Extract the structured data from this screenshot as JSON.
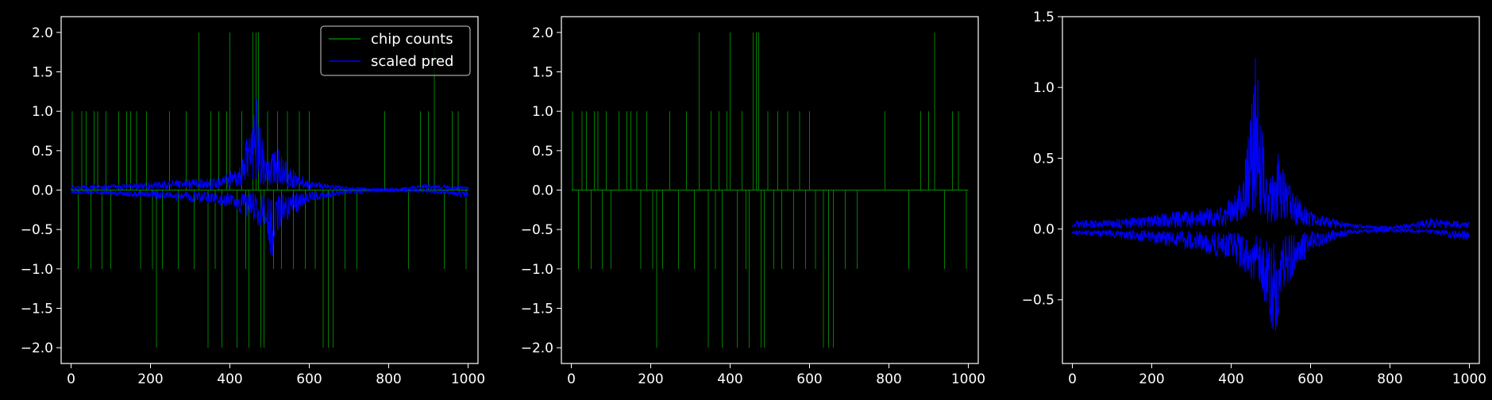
{
  "figure": {
    "background": "#000000",
    "foreground": "#ffffff"
  },
  "chart_data": [
    {
      "type": "line",
      "title": "",
      "xlabel": "",
      "ylabel": "",
      "xlim": [
        -25,
        1025
      ],
      "ylim": [
        -2.2,
        2.2
      ],
      "xticks": [
        0,
        200,
        400,
        600,
        800,
        1000
      ],
      "yticks": [
        -2.0,
        -1.5,
        -1.0,
        -0.5,
        0.0,
        0.5,
        1.0,
        1.5,
        2.0
      ],
      "xtick_labels": [
        "0",
        "200",
        "400",
        "600",
        "800",
        "1000"
      ],
      "ytick_labels": [
        "−2.0",
        "−1.5",
        "−1.0",
        "−0.5",
        "0.0",
        "0.5",
        "1.0",
        "1.5",
        "2.0"
      ],
      "grid": false,
      "legend": {
        "location": "top-right",
        "entries": [
          "chip counts",
          "scaled pred"
        ]
      },
      "series": [
        {
          "name": "chip counts",
          "color": "#008000",
          "nonzero_points": [
            [
              3,
              1
            ],
            [
              18,
              -1
            ],
            [
              27,
              1
            ],
            [
              38,
              1
            ],
            [
              50,
              -1
            ],
            [
              58,
              1
            ],
            [
              67,
              1
            ],
            [
              78,
              -1
            ],
            [
              88,
              1
            ],
            [
              100,
              -1
            ],
            [
              120,
              1
            ],
            [
              140,
              1
            ],
            [
              150,
              1
            ],
            [
              165,
              1
            ],
            [
              175,
              -1
            ],
            [
              190,
              1
            ],
            [
              205,
              -1
            ],
            [
              215,
              -2
            ],
            [
              230,
              -1
            ],
            [
              248,
              1
            ],
            [
              270,
              -1
            ],
            [
              290,
              1
            ],
            [
              310,
              -1
            ],
            [
              322,
              2
            ],
            [
              345,
              -2
            ],
            [
              352,
              1
            ],
            [
              363,
              -1
            ],
            [
              372,
              1
            ],
            [
              380,
              -2
            ],
            [
              392,
              1
            ],
            [
              400,
              2
            ],
            [
              418,
              -2
            ],
            [
              430,
              1
            ],
            [
              440,
              -1
            ],
            [
              448,
              -2
            ],
            [
              458,
              2
            ],
            [
              466,
              2
            ],
            [
              472,
              2
            ],
            [
              478,
              -2
            ],
            [
              486,
              -2
            ],
            [
              495,
              1
            ],
            [
              510,
              -1
            ],
            [
              520,
              1
            ],
            [
              530,
              -1
            ],
            [
              545,
              1
            ],
            [
              560,
              -1
            ],
            [
              575,
              1
            ],
            [
              590,
              -1
            ],
            [
              600,
              1
            ],
            [
              615,
              -1
            ],
            [
              635,
              -2
            ],
            [
              648,
              -2
            ],
            [
              660,
              -2
            ],
            [
              690,
              -1
            ],
            [
              720,
              -1
            ],
            [
              790,
              1
            ],
            [
              850,
              -1
            ],
            [
              880,
              1
            ],
            [
              900,
              1
            ],
            [
              915,
              2
            ],
            [
              940,
              -1
            ],
            [
              960,
              1
            ],
            [
              975,
              1
            ],
            [
              995,
              -1
            ]
          ]
        },
        {
          "name": "scaled pred",
          "color": "#0000ff",
          "upper_envelope": [
            [
              0,
              0.06
            ],
            [
              100,
              0.07
            ],
            [
              200,
              0.1
            ],
            [
              300,
              0.14
            ],
            [
              380,
              0.16
            ],
            [
              430,
              0.35
            ],
            [
              455,
              1.0
            ],
            [
              465,
              1.38
            ],
            [
              475,
              0.9
            ],
            [
              490,
              0.35
            ],
            [
              520,
              0.55
            ],
            [
              550,
              0.3
            ],
            [
              600,
              0.12
            ],
            [
              700,
              0.04
            ],
            [
              800,
              0.01
            ],
            [
              900,
              0.08
            ],
            [
              1000,
              0.05
            ]
          ],
          "lower_envelope": [
            [
              0,
              -0.04
            ],
            [
              100,
              -0.06
            ],
            [
              200,
              -0.1
            ],
            [
              300,
              -0.15
            ],
            [
              400,
              -0.22
            ],
            [
              450,
              -0.35
            ],
            [
              490,
              -0.55
            ],
            [
              505,
              -0.88
            ],
            [
              530,
              -0.45
            ],
            [
              600,
              -0.15
            ],
            [
              700,
              -0.04
            ],
            [
              800,
              -0.01
            ],
            [
              900,
              -0.03
            ],
            [
              1000,
              -0.1
            ]
          ]
        }
      ]
    },
    {
      "type": "line",
      "title": "",
      "xlabel": "",
      "ylabel": "",
      "xlim": [
        -25,
        1025
      ],
      "ylim": [
        -2.2,
        2.2
      ],
      "xticks": [
        0,
        200,
        400,
        600,
        800,
        1000
      ],
      "yticks": [
        -2.0,
        -1.5,
        -1.0,
        -0.5,
        0.0,
        0.5,
        1.0,
        1.5,
        2.0
      ],
      "xtick_labels": [
        "0",
        "200",
        "400",
        "600",
        "800",
        "1000"
      ],
      "ytick_labels": [
        "−2.0",
        "−1.5",
        "−1.0",
        "−0.5",
        "0.0",
        "0.5",
        "1.0",
        "1.5",
        "2.0"
      ],
      "grid": false,
      "series": [
        {
          "color": "#008000",
          "nonzero_points": [
            [
              3,
              1
            ],
            [
              18,
              -1
            ],
            [
              27,
              1
            ],
            [
              38,
              1
            ],
            [
              50,
              -1
            ],
            [
              58,
              1
            ],
            [
              67,
              1
            ],
            [
              78,
              -1
            ],
            [
              88,
              1
            ],
            [
              100,
              -1
            ],
            [
              120,
              1
            ],
            [
              140,
              1
            ],
            [
              150,
              1
            ],
            [
              165,
              1
            ],
            [
              175,
              -1
            ],
            [
              190,
              1
            ],
            [
              205,
              -1
            ],
            [
              215,
              -2
            ],
            [
              230,
              -1
            ],
            [
              248,
              1
            ],
            [
              270,
              -1
            ],
            [
              290,
              1
            ],
            [
              310,
              -1
            ],
            [
              322,
              2
            ],
            [
              345,
              -2
            ],
            [
              352,
              1
            ],
            [
              363,
              -1
            ],
            [
              372,
              1
            ],
            [
              380,
              -2
            ],
            [
              392,
              1
            ],
            [
              400,
              2
            ],
            [
              418,
              -2
            ],
            [
              430,
              1
            ],
            [
              440,
              -1
            ],
            [
              448,
              -2
            ],
            [
              458,
              2
            ],
            [
              466,
              2
            ],
            [
              472,
              2
            ],
            [
              478,
              -2
            ],
            [
              486,
              -2
            ],
            [
              495,
              1
            ],
            [
              510,
              -1
            ],
            [
              520,
              1
            ],
            [
              530,
              -1
            ],
            [
              545,
              1
            ],
            [
              560,
              -1
            ],
            [
              575,
              1
            ],
            [
              590,
              -1
            ],
            [
              600,
              1
            ],
            [
              615,
              -1
            ],
            [
              635,
              -2
            ],
            [
              648,
              -2
            ],
            [
              660,
              -2
            ],
            [
              690,
              -1
            ],
            [
              720,
              -1
            ],
            [
              790,
              1
            ],
            [
              850,
              -1
            ],
            [
              880,
              1
            ],
            [
              900,
              1
            ],
            [
              915,
              2
            ],
            [
              940,
              -1
            ],
            [
              960,
              1
            ],
            [
              975,
              1
            ],
            [
              995,
              -1
            ]
          ]
        }
      ]
    },
    {
      "type": "line",
      "title": "",
      "xlabel": "",
      "ylabel": "",
      "xlim": [
        -25,
        1025
      ],
      "ylim": [
        -0.95,
        1.5
      ],
      "xticks": [
        0,
        200,
        400,
        600,
        800,
        1000
      ],
      "yticks": [
        -0.5,
        0.0,
        0.5,
        1.0,
        1.5
      ],
      "xtick_labels": [
        "0",
        "200",
        "400",
        "600",
        "800",
        "1000"
      ],
      "ytick_labels": [
        "−0.5",
        "0.0",
        "0.5",
        "1.0",
        "1.5"
      ],
      "grid": false,
      "series": [
        {
          "color": "#0000ff",
          "upper_envelope": [
            [
              0,
              0.06
            ],
            [
              100,
              0.07
            ],
            [
              200,
              0.1
            ],
            [
              300,
              0.14
            ],
            [
              380,
              0.16
            ],
            [
              430,
              0.35
            ],
            [
              455,
              1.0
            ],
            [
              465,
              1.38
            ],
            [
              475,
              0.9
            ],
            [
              490,
              0.35
            ],
            [
              520,
              0.55
            ],
            [
              550,
              0.3
            ],
            [
              600,
              0.12
            ],
            [
              700,
              0.04
            ],
            [
              800,
              0.01
            ],
            [
              900,
              0.08
            ],
            [
              1000,
              0.05
            ]
          ],
          "lower_envelope": [
            [
              0,
              -0.04
            ],
            [
              100,
              -0.06
            ],
            [
              200,
              -0.1
            ],
            [
              300,
              -0.15
            ],
            [
              400,
              -0.22
            ],
            [
              450,
              -0.35
            ],
            [
              490,
              -0.55
            ],
            [
              505,
              -0.88
            ],
            [
              530,
              -0.45
            ],
            [
              600,
              -0.15
            ],
            [
              700,
              -0.04
            ],
            [
              800,
              -0.01
            ],
            [
              900,
              -0.03
            ],
            [
              1000,
              -0.1
            ]
          ]
        }
      ]
    }
  ]
}
